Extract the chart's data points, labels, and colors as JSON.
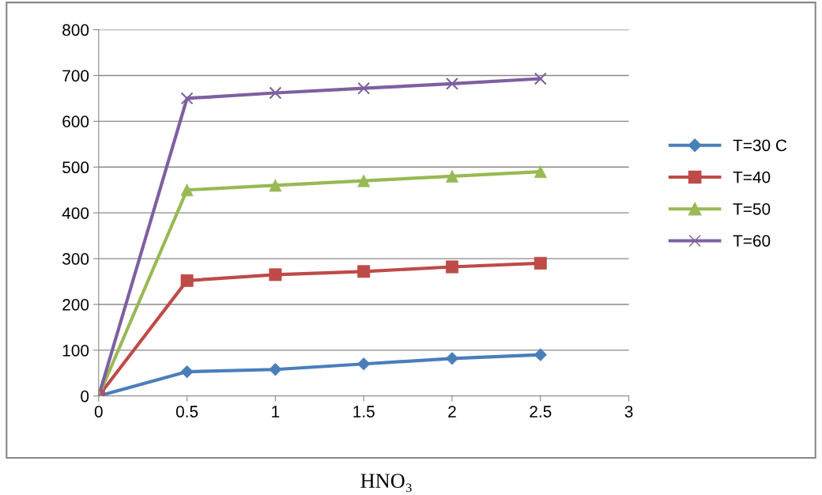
{
  "chart_data": {
    "type": "line",
    "xlabel": "HNO₃",
    "x": [
      0,
      0.5,
      1,
      1.5,
      2,
      2.5
    ],
    "series": [
      {
        "name": "T=30 C",
        "color": "#4a7ebb",
        "marker": "diamond",
        "values": [
          0,
          53,
          58,
          70,
          82,
          90
        ]
      },
      {
        "name": "T=40",
        "color": "#be4b48",
        "marker": "square",
        "values": [
          0,
          252,
          265,
          272,
          282,
          290
        ]
      },
      {
        "name": "T=50",
        "color": "#98b954",
        "marker": "triangle",
        "values": [
          0,
          450,
          460,
          470,
          480,
          490
        ]
      },
      {
        "name": "T=60",
        "color": "#7d60a0",
        "marker": "cross",
        "values": [
          0,
          650,
          662,
          672,
          682,
          693
        ]
      }
    ],
    "xlim": [
      0,
      3
    ],
    "xticks": [
      0,
      0.5,
      1,
      1.5,
      2,
      2.5,
      3
    ],
    "ylim": [
      0,
      800
    ],
    "yticks": [
      0,
      100,
      200,
      300,
      400,
      500,
      600,
      700,
      800
    ],
    "grid": "y",
    "legend": "right"
  }
}
